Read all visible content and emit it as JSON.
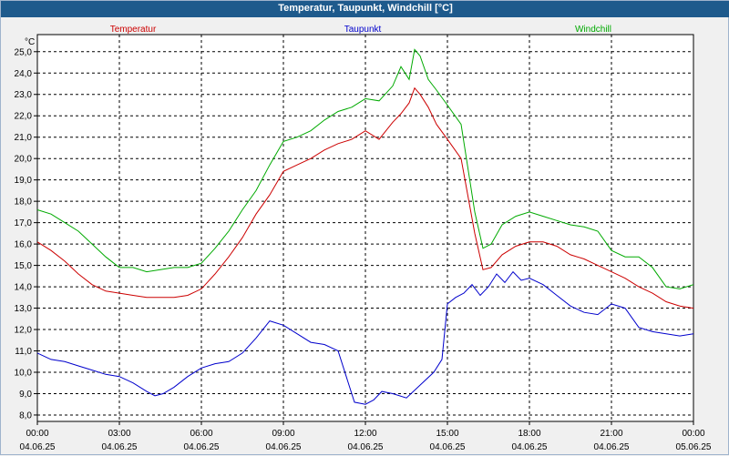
{
  "window": {
    "title": "Temperatur, Taupunkt, Windchill [°C]"
  },
  "chart_data": {
    "type": "line",
    "title": "Temperatur, Taupunkt, Windchill [°C]",
    "y_unit": "°C",
    "ylim": [
      7.7,
      25.8
    ],
    "xlim": [
      0,
      24
    ],
    "grid": true,
    "legend_placement": "top",
    "y_ticks": [
      "8,0",
      "9,0",
      "10,0",
      "11,0",
      "12,0",
      "13,0",
      "14,0",
      "15,0",
      "16,0",
      "17,0",
      "18,0",
      "19,0",
      "20,0",
      "21,0",
      "22,0",
      "23,0",
      "24,0",
      "25,0"
    ],
    "x_ticks": [
      {
        "time": "00:00",
        "date": "04.06.25"
      },
      {
        "time": "03:00",
        "date": "04.06.25"
      },
      {
        "time": "06:00",
        "date": "04.06.25"
      },
      {
        "time": "09:00",
        "date": "04.06.25"
      },
      {
        "time": "12:00",
        "date": "04.06.25"
      },
      {
        "time": "15:00",
        "date": "04.06.25"
      },
      {
        "time": "18:00",
        "date": "04.06.25"
      },
      {
        "time": "21:00",
        "date": "04.06.25"
      },
      {
        "time": "00:00",
        "date": "05.06.25"
      }
    ],
    "series": [
      {
        "name": "Temperatur",
        "color": "#cc0000",
        "x": [
          0,
          0.5,
          1,
          1.5,
          2,
          2.5,
          3,
          3.5,
          4,
          4.5,
          5,
          5.5,
          6,
          6.5,
          7,
          7.5,
          8,
          8.5,
          9,
          9.5,
          10,
          10.5,
          11,
          11.5,
          12,
          12.5,
          13,
          13.3,
          13.6,
          13.8,
          14,
          14.3,
          14.6,
          15,
          15.5,
          16,
          16.3,
          16.6,
          17,
          17.5,
          18,
          18.5,
          19,
          19.5,
          20,
          20.5,
          21,
          21.5,
          22,
          22.5,
          23,
          23.5,
          24
        ],
        "y": [
          16.1,
          15.7,
          15.2,
          14.6,
          14.1,
          13.8,
          13.7,
          13.6,
          13.5,
          13.5,
          13.5,
          13.6,
          13.9,
          14.6,
          15.4,
          16.3,
          17.4,
          18.3,
          19.4,
          19.7,
          20.0,
          20.4,
          20.7,
          20.9,
          21.3,
          20.9,
          21.7,
          22.1,
          22.6,
          23.3,
          23.0,
          22.4,
          21.6,
          20.9,
          20.0,
          16.5,
          14.8,
          14.9,
          15.5,
          15.9,
          16.1,
          16.1,
          15.9,
          15.5,
          15.3,
          15.0,
          14.7,
          14.4,
          14.0,
          13.7,
          13.3,
          13.1,
          13.0
        ]
      },
      {
        "name": "Taupunkt",
        "color": "#0000cc",
        "x": [
          0,
          0.5,
          1,
          1.5,
          2,
          2.5,
          3,
          3.5,
          4,
          4.3,
          4.6,
          5,
          5.5,
          6,
          6.5,
          7,
          7.5,
          8,
          8.5,
          9,
          9.5,
          10,
          10.5,
          11,
          11.3,
          11.6,
          12,
          12.3,
          12.6,
          13,
          13.5,
          14,
          14.5,
          14.8,
          15,
          15.3,
          15.6,
          15.9,
          16.2,
          16.5,
          16.8,
          17.1,
          17.4,
          17.7,
          18,
          18.5,
          19,
          19.5,
          20,
          20.5,
          21,
          21.5,
          22,
          22.5,
          23,
          23.5,
          24
        ],
        "y": [
          10.9,
          10.6,
          10.5,
          10.3,
          10.1,
          9.9,
          9.8,
          9.5,
          9.1,
          8.9,
          9.0,
          9.3,
          9.8,
          10.2,
          10.4,
          10.5,
          10.9,
          11.6,
          12.4,
          12.2,
          11.8,
          11.4,
          11.3,
          11.0,
          9.8,
          8.6,
          8.5,
          8.7,
          9.1,
          9.0,
          8.8,
          9.4,
          10.0,
          10.6,
          13.2,
          13.5,
          13.7,
          14.1,
          13.6,
          14.0,
          14.6,
          14.2,
          14.7,
          14.3,
          14.4,
          14.1,
          13.6,
          13.1,
          12.8,
          12.7,
          13.2,
          13.0,
          12.1,
          11.9,
          11.8,
          11.7,
          11.8
        ]
      },
      {
        "name": "Windchill",
        "color": "#00aa00",
        "x": [
          0,
          0.5,
          1,
          1.5,
          2,
          2.5,
          3,
          3.5,
          4,
          4.5,
          5,
          5.5,
          6,
          6.5,
          7,
          7.5,
          8,
          8.5,
          9,
          9.5,
          10,
          10.5,
          11,
          11.5,
          12,
          12.5,
          13,
          13.3,
          13.6,
          13.8,
          14,
          14.3,
          14.6,
          15,
          15.5,
          16,
          16.3,
          16.6,
          17,
          17.5,
          18,
          18.5,
          19,
          19.5,
          20,
          20.5,
          21,
          21.5,
          22,
          22.5,
          23,
          23.5,
          24
        ],
        "y": [
          17.6,
          17.4,
          17.0,
          16.6,
          16.0,
          15.4,
          14.9,
          14.9,
          14.7,
          14.8,
          14.9,
          14.9,
          15.1,
          15.8,
          16.6,
          17.6,
          18.5,
          19.7,
          20.8,
          21.0,
          21.3,
          21.8,
          22.2,
          22.4,
          22.8,
          22.7,
          23.4,
          24.3,
          23.7,
          25.1,
          24.8,
          23.7,
          23.2,
          22.5,
          21.6,
          17.5,
          15.8,
          16.0,
          16.9,
          17.3,
          17.5,
          17.3,
          17.1,
          16.9,
          16.8,
          16.6,
          15.7,
          15.4,
          15.4,
          14.9,
          14.0,
          13.9,
          14.1
        ]
      }
    ]
  }
}
